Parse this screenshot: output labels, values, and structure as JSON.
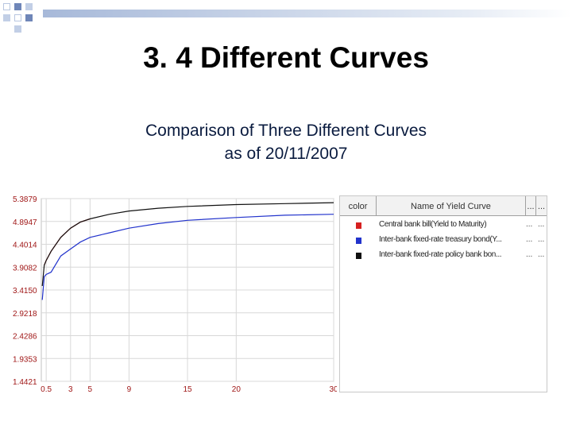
{
  "slide": {
    "title": "3. 4 Different Curves"
  },
  "chart_data": {
    "type": "line",
    "title": "Comparison of Three Different Curves",
    "subtitle": "as of 20/11/2007",
    "xlabel": "",
    "ylabel": "",
    "x_ticks": [
      "0.5",
      "3",
      "5",
      "9",
      "15",
      "20",
      "30"
    ],
    "y_ticks": [
      "5.3879",
      "4.8947",
      "4.4014",
      "3.9082",
      "3.4150",
      "2.9218",
      "2.4286",
      "1.9353",
      "1.4421"
    ],
    "xlim": [
      0,
      30
    ],
    "ylim": [
      1.4421,
      5.3879
    ],
    "grid": true,
    "legend_position": "right",
    "series": [
      {
        "name": "Central bank bill(Yield to Maturity)",
        "color": "#d62020",
        "x": [
          0.3,
          0.5,
          1,
          2,
          3,
          4,
          5
        ],
        "y": [
          3.95,
          4.05,
          4.25,
          4.55,
          4.75,
          4.88,
          4.95
        ]
      },
      {
        "name": "Inter-bank fixed-rate treasury bond(Y...",
        "color": "#2233cc",
        "x": [
          0.1,
          0.3,
          0.5,
          1,
          2,
          3,
          4,
          5,
          7,
          9,
          12,
          15,
          20,
          25,
          30
        ],
        "y": [
          3.2,
          3.7,
          3.75,
          3.8,
          4.15,
          4.3,
          4.45,
          4.55,
          4.65,
          4.75,
          4.85,
          4.92,
          4.98,
          5.03,
          5.05
        ]
      },
      {
        "name": "Inter-bank fixed-rate policy bank bon...",
        "color": "#111111",
        "x": [
          0.1,
          0.3,
          0.5,
          1,
          2,
          3,
          4,
          5,
          7,
          9,
          12,
          15,
          20,
          25,
          30
        ],
        "y": [
          3.5,
          3.95,
          4.05,
          4.25,
          4.55,
          4.75,
          4.88,
          4.95,
          5.05,
          5.12,
          5.18,
          5.22,
          5.26,
          5.28,
          5.3
        ]
      }
    ]
  },
  "legend_table": {
    "columns": [
      "color",
      "Name of Yield Curve",
      "...",
      "..."
    ],
    "row_dots": [
      "...",
      "..."
    ]
  }
}
